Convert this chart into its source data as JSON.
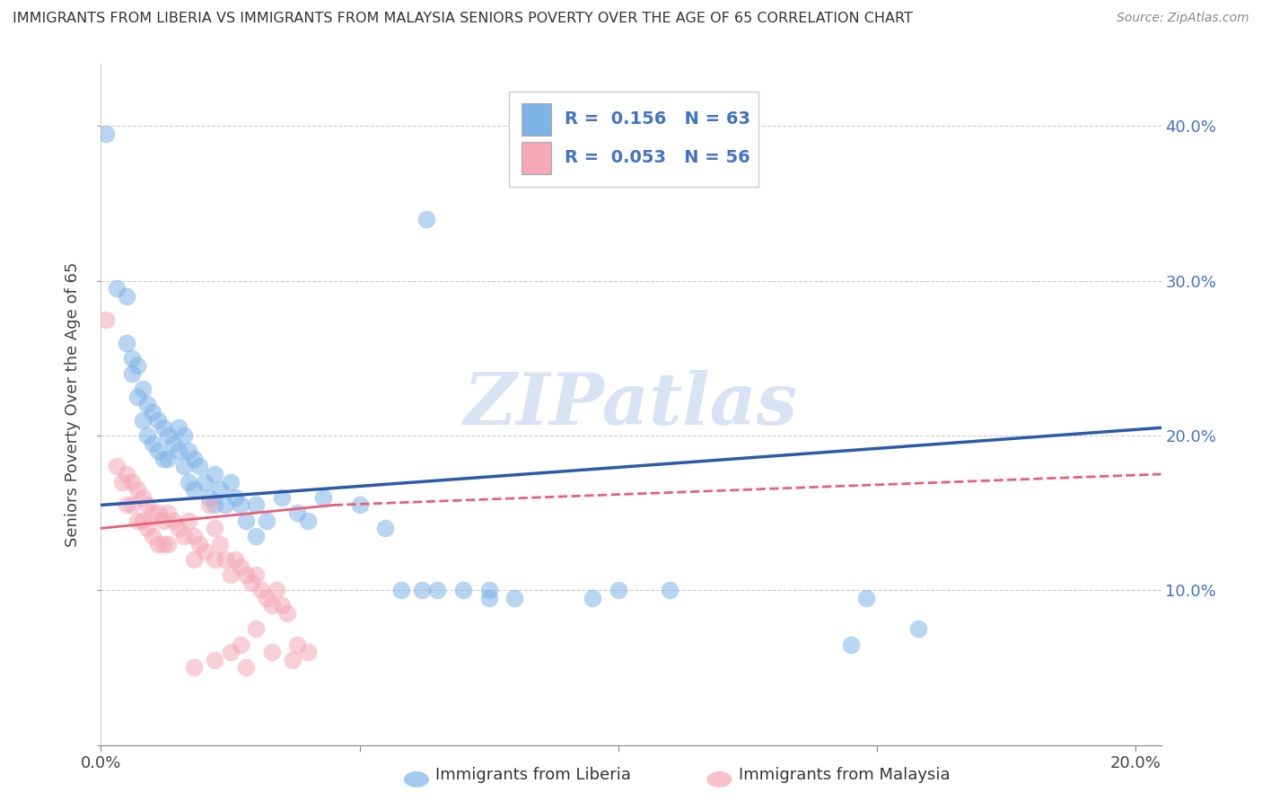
{
  "title": "IMMIGRANTS FROM LIBERIA VS IMMIGRANTS FROM MALAYSIA SENIORS POVERTY OVER THE AGE OF 65 CORRELATION CHART",
  "source": "Source: ZipAtlas.com",
  "ylabel": "Seniors Poverty Over the Age of 65",
  "xlim": [
    0.0,
    0.205
  ],
  "ylim": [
    0.0,
    0.44
  ],
  "liberia_color": "#7EB3E8",
  "malaysia_color": "#F4A8B8",
  "liberia_line_color": "#2B5BA8",
  "malaysia_line_color": "#E8607A",
  "liberia_R": 0.156,
  "liberia_N": 63,
  "malaysia_R": 0.053,
  "malaysia_N": 56,
  "watermark": "ZIPatlas",
  "legend_text_color": "#4472C4",
  "liberia_scatter": [
    [
      0.001,
      0.395
    ],
    [
      0.003,
      0.295
    ],
    [
      0.005,
      0.29
    ],
    [
      0.005,
      0.26
    ],
    [
      0.006,
      0.25
    ],
    [
      0.006,
      0.24
    ],
    [
      0.007,
      0.245
    ],
    [
      0.007,
      0.225
    ],
    [
      0.008,
      0.23
    ],
    [
      0.008,
      0.21
    ],
    [
      0.009,
      0.22
    ],
    [
      0.009,
      0.2
    ],
    [
      0.01,
      0.215
    ],
    [
      0.01,
      0.195
    ],
    [
      0.011,
      0.21
    ],
    [
      0.011,
      0.19
    ],
    [
      0.012,
      0.205
    ],
    [
      0.012,
      0.185
    ],
    [
      0.013,
      0.2
    ],
    [
      0.013,
      0.185
    ],
    [
      0.014,
      0.195
    ],
    [
      0.015,
      0.205
    ],
    [
      0.015,
      0.19
    ],
    [
      0.016,
      0.2
    ],
    [
      0.016,
      0.18
    ],
    [
      0.017,
      0.19
    ],
    [
      0.017,
      0.17
    ],
    [
      0.018,
      0.185
    ],
    [
      0.018,
      0.165
    ],
    [
      0.019,
      0.18
    ],
    [
      0.02,
      0.17
    ],
    [
      0.021,
      0.16
    ],
    [
      0.022,
      0.175
    ],
    [
      0.022,
      0.155
    ],
    [
      0.023,
      0.165
    ],
    [
      0.024,
      0.155
    ],
    [
      0.025,
      0.17
    ],
    [
      0.026,
      0.16
    ],
    [
      0.027,
      0.155
    ],
    [
      0.028,
      0.145
    ],
    [
      0.03,
      0.155
    ],
    [
      0.03,
      0.135
    ],
    [
      0.032,
      0.145
    ],
    [
      0.035,
      0.16
    ],
    [
      0.038,
      0.15
    ],
    [
      0.04,
      0.145
    ],
    [
      0.043,
      0.16
    ],
    [
      0.05,
      0.155
    ],
    [
      0.055,
      0.14
    ],
    [
      0.058,
      0.1
    ],
    [
      0.062,
      0.1
    ],
    [
      0.065,
      0.1
    ],
    [
      0.07,
      0.1
    ],
    [
      0.075,
      0.1
    ],
    [
      0.075,
      0.095
    ],
    [
      0.08,
      0.095
    ],
    [
      0.095,
      0.095
    ],
    [
      0.1,
      0.1
    ],
    [
      0.11,
      0.1
    ],
    [
      0.145,
      0.065
    ],
    [
      0.148,
      0.095
    ],
    [
      0.158,
      0.075
    ],
    [
      0.063,
      0.34
    ]
  ],
  "malaysia_scatter": [
    [
      0.001,
      0.275
    ],
    [
      0.003,
      0.18
    ],
    [
      0.004,
      0.17
    ],
    [
      0.005,
      0.175
    ],
    [
      0.005,
      0.155
    ],
    [
      0.006,
      0.17
    ],
    [
      0.006,
      0.155
    ],
    [
      0.007,
      0.165
    ],
    [
      0.007,
      0.145
    ],
    [
      0.008,
      0.16
    ],
    [
      0.008,
      0.145
    ],
    [
      0.009,
      0.155
    ],
    [
      0.009,
      0.14
    ],
    [
      0.01,
      0.15
    ],
    [
      0.01,
      0.135
    ],
    [
      0.011,
      0.15
    ],
    [
      0.011,
      0.13
    ],
    [
      0.012,
      0.145
    ],
    [
      0.012,
      0.13
    ],
    [
      0.013,
      0.15
    ],
    [
      0.013,
      0.13
    ],
    [
      0.014,
      0.145
    ],
    [
      0.015,
      0.14
    ],
    [
      0.016,
      0.135
    ],
    [
      0.017,
      0.145
    ],
    [
      0.018,
      0.135
    ],
    [
      0.018,
      0.12
    ],
    [
      0.019,
      0.13
    ],
    [
      0.02,
      0.125
    ],
    [
      0.021,
      0.155
    ],
    [
      0.022,
      0.14
    ],
    [
      0.022,
      0.12
    ],
    [
      0.023,
      0.13
    ],
    [
      0.024,
      0.12
    ],
    [
      0.025,
      0.11
    ],
    [
      0.026,
      0.12
    ],
    [
      0.027,
      0.115
    ],
    [
      0.028,
      0.11
    ],
    [
      0.029,
      0.105
    ],
    [
      0.03,
      0.11
    ],
    [
      0.031,
      0.1
    ],
    [
      0.032,
      0.095
    ],
    [
      0.033,
      0.09
    ],
    [
      0.034,
      0.1
    ],
    [
      0.035,
      0.09
    ],
    [
      0.036,
      0.085
    ],
    [
      0.027,
      0.065
    ],
    [
      0.03,
      0.075
    ],
    [
      0.033,
      0.06
    ],
    [
      0.037,
      0.055
    ],
    [
      0.04,
      0.06
    ],
    [
      0.038,
      0.065
    ],
    [
      0.028,
      0.05
    ],
    [
      0.025,
      0.06
    ],
    [
      0.022,
      0.055
    ],
    [
      0.018,
      0.05
    ]
  ],
  "lib_line": {
    "x0": 0.0,
    "y0": 0.155,
    "x1": 0.205,
    "y1": 0.205
  },
  "mal_solid_line": {
    "x0": 0.0,
    "y0": 0.14,
    "x1": 0.045,
    "y1": 0.155
  },
  "mal_dash_line": {
    "x0": 0.045,
    "y0": 0.155,
    "x1": 0.205,
    "y1": 0.175
  }
}
